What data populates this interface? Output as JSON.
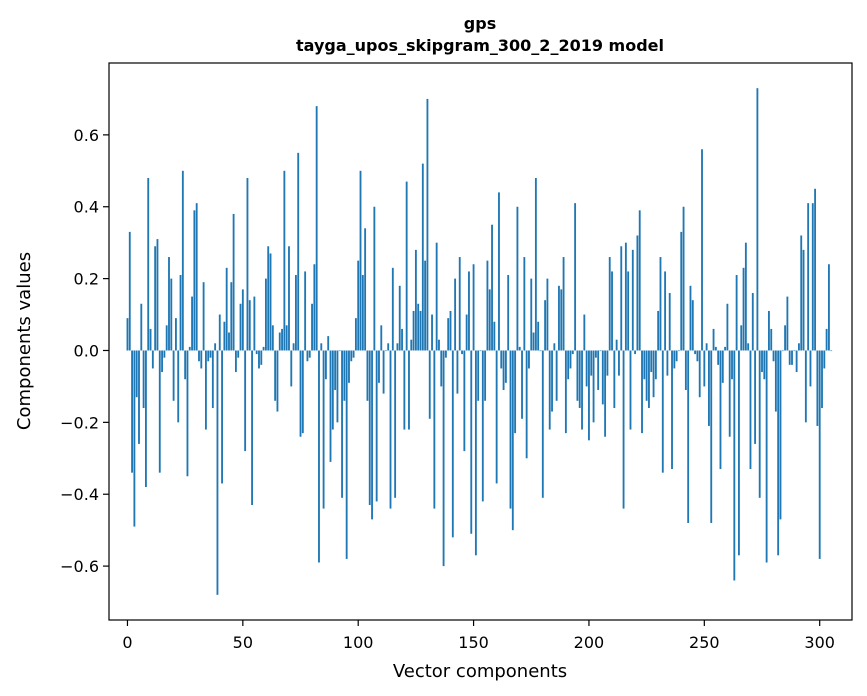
{
  "chart_data": {
    "type": "bar",
    "title": "gps",
    "subtitle": "tayga_upos_skipgram_300_2_2019 model",
    "xlabel": "Vector components",
    "ylabel": "Components values",
    "xlim": [
      -8,
      314
    ],
    "ylim": [
      -0.75,
      0.8
    ],
    "xticks": [
      0,
      50,
      100,
      150,
      200,
      250,
      300
    ],
    "yticks": [
      -0.6,
      -0.4,
      -0.2,
      0.0,
      0.2,
      0.4,
      0.6
    ],
    "xtick_labels": [
      "0",
      "50",
      "100",
      "150",
      "200",
      "250",
      "300"
    ],
    "ytick_labels": [
      "−0.6",
      "−0.4",
      "−0.2",
      "0.0",
      "0.2",
      "0.4",
      "0.6"
    ],
    "bar_color": "#1f77b4",
    "grid": false,
    "series": [
      {
        "values": [
          0.09,
          0.33,
          -0.34,
          -0.49,
          -0.13,
          -0.26,
          0.13,
          -0.16,
          -0.38,
          0.48,
          0.06,
          -0.05,
          0.29,
          0.31,
          -0.34,
          -0.06,
          -0.02,
          0.07,
          0.26,
          0.2,
          -0.14,
          0.09,
          -0.2,
          0.21,
          0.5,
          -0.08,
          -0.35,
          0.01,
          0.15,
          0.39,
          0.41,
          -0.03,
          -0.05,
          0.19,
          -0.22,
          -0.03,
          -0.02,
          -0.16,
          0.02,
          -0.68,
          0.1,
          -0.37,
          0.08,
          0.23,
          0.05,
          0.19,
          0.38,
          -0.06,
          -0.02,
          0.13,
          0.17,
          -0.28,
          0.48,
          0.14,
          -0.43,
          0.15,
          -0.01,
          -0.05,
          -0.04,
          0.01,
          0.2,
          0.29,
          0.27,
          0.07,
          -0.14,
          -0.17,
          0.05,
          0.06,
          0.5,
          0.07,
          0.29,
          -0.1,
          0.02,
          0.21,
          0.55,
          -0.24,
          -0.23,
          0.22,
          -0.03,
          -0.02,
          0.13,
          0.24,
          0.68,
          -0.59,
          0.02,
          -0.44,
          -0.08,
          0.04,
          -0.31,
          -0.22,
          -0.11,
          -0.2,
          0.0,
          -0.41,
          -0.14,
          -0.58,
          -0.09,
          -0.03,
          -0.02,
          0.09,
          0.25,
          0.5,
          0.21,
          0.34,
          -0.14,
          -0.43,
          -0.47,
          0.4,
          -0.42,
          -0.09,
          0.07,
          -0.12,
          0.0,
          0.02,
          -0.44,
          0.23,
          -0.41,
          0.02,
          0.18,
          0.06,
          -0.22,
          0.47,
          -0.22,
          0.03,
          0.11,
          0.28,
          0.13,
          0.11,
          0.52,
          0.25,
          0.7,
          -0.19,
          0.1,
          -0.44,
          0.3,
          0.03,
          -0.1,
          -0.6,
          -0.02,
          0.09,
          0.11,
          -0.52,
          0.2,
          -0.12,
          0.26,
          -0.01,
          -0.28,
          0.1,
          0.22,
          -0.51,
          0.24,
          -0.57,
          -0.14,
          0.0,
          -0.42,
          -0.14,
          0.25,
          0.17,
          0.35,
          0.08,
          -0.37,
          0.44,
          -0.05,
          -0.11,
          -0.09,
          0.21,
          -0.44,
          -0.5,
          -0.23,
          0.4,
          0.01,
          -0.19,
          0.26,
          -0.3,
          -0.05,
          0.2,
          0.05,
          0.48,
          0.08,
          0.0,
          -0.41,
          0.14,
          0.2,
          -0.22,
          -0.17,
          0.02,
          -0.14,
          0.18,
          0.17,
          0.26,
          -0.23,
          -0.08,
          -0.05,
          -0.01,
          0.41,
          -0.14,
          -0.16,
          -0.22,
          0.1,
          -0.1,
          -0.25,
          -0.07,
          -0.2,
          -0.02,
          -0.11,
          0.0,
          -0.15,
          -0.24,
          -0.07,
          0.26,
          0.22,
          -0.16,
          0.03,
          -0.07,
          0.29,
          -0.44,
          0.3,
          0.22,
          -0.22,
          0.28,
          -0.01,
          0.32,
          0.39,
          -0.23,
          -0.08,
          -0.14,
          -0.16,
          -0.06,
          -0.13,
          -0.08,
          0.11,
          0.26,
          -0.34,
          0.22,
          -0.07,
          0.16,
          -0.33,
          -0.05,
          -0.03,
          0.0,
          0.33,
          0.4,
          -0.11,
          -0.48,
          0.18,
          0.14,
          -0.01,
          -0.03,
          -0.13,
          0.56,
          -0.1,
          0.02,
          -0.21,
          -0.48,
          0.06,
          0.01,
          -0.04,
          -0.33,
          -0.09,
          0.01,
          0.13,
          -0.24,
          -0.08,
          -0.64,
          0.21,
          -0.57,
          0.07,
          0.23,
          0.3,
          0.02,
          -0.33,
          0.16,
          -0.26,
          0.73,
          -0.41,
          -0.06,
          -0.08,
          -0.59,
          0.11,
          0.06,
          -0.03,
          -0.17,
          -0.57,
          -0.47,
          0.0,
          0.07,
          0.15,
          -0.04,
          -0.04,
          0.0,
          -0.06,
          0.02,
          0.32,
          0.28,
          -0.2,
          0.41,
          -0.1,
          0.41,
          0.45,
          -0.21,
          -0.58,
          -0.16,
          -0.05,
          0.06,
          0.24,
          0.0
        ]
      }
    ]
  }
}
